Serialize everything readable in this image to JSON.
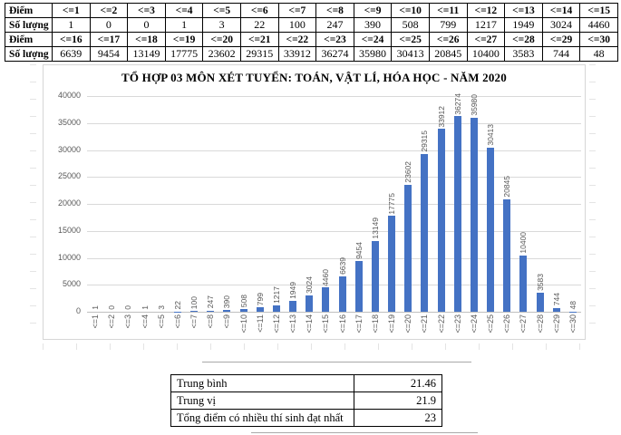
{
  "score_table": {
    "rows": [
      {
        "label": "Điểm",
        "header": true,
        "cells": [
          "<=1",
          "<=2",
          "<=3",
          "<=4",
          "<=5",
          "<=6",
          "<=7",
          "<=8",
          "<=9",
          "<=10",
          "<=11",
          "<=12",
          "<=13",
          "<=14",
          "<=15"
        ]
      },
      {
        "label": "Số lượng",
        "header": false,
        "cells": [
          "1",
          "0",
          "0",
          "1",
          "3",
          "22",
          "100",
          "247",
          "390",
          "508",
          "799",
          "1217",
          "1949",
          "3024",
          "4460"
        ]
      },
      {
        "label": "Điểm",
        "header": true,
        "cells": [
          "<=16",
          "<=17",
          "<=18",
          "<=19",
          "<=20",
          "<=21",
          "<=22",
          "<=23",
          "<=24",
          "<=25",
          "<=26",
          "<=27",
          "<=28",
          "<=29",
          "<=30"
        ]
      },
      {
        "label": "Số lượng",
        "header": false,
        "cells": [
          "6639",
          "9454",
          "13149",
          "17775",
          "23602",
          "29315",
          "33912",
          "36274",
          "35980",
          "30413",
          "20845",
          "10400",
          "3583",
          "744",
          "48"
        ]
      }
    ]
  },
  "chart_data": {
    "type": "bar",
    "title": "TỔ HỢP 03 MÔN XÉT TUYỂN: TOÁN, VẬT LÍ, HÓA HỌC - NĂM 2020",
    "categories": [
      "<=1",
      "<=2",
      "<=3",
      "<=4",
      "<=5",
      "<=6",
      "<=7",
      "<=8",
      "<=9",
      "<=10",
      "<=11",
      "<=12",
      "<=13",
      "<=14",
      "<=15",
      "<=16",
      "<=17",
      "<=18",
      "<=19",
      "<=20",
      "<=21",
      "<=22",
      "<=23",
      "<=24",
      "<=25",
      "<=26",
      "<=27",
      "<=28",
      "<=29",
      "<=30"
    ],
    "values": [
      1,
      0,
      0,
      1,
      3,
      22,
      100,
      247,
      390,
      508,
      799,
      1217,
      1949,
      3024,
      4460,
      6639,
      9454,
      13149,
      17775,
      23602,
      29315,
      33912,
      36274,
      35980,
      30413,
      20845,
      10400,
      3583,
      744,
      48
    ],
    "xlabel": "",
    "ylabel": "",
    "ylim": [
      0,
      40000
    ],
    "ytick_step": 5000,
    "yticks": [
      0,
      5000,
      10000,
      15000,
      20000,
      25000,
      30000,
      35000,
      40000
    ],
    "grid": true,
    "legend_position": "none",
    "data_labels": true,
    "label_rotation_deg": 90,
    "bar_color": "#4472C4",
    "gridline_color": "#D9D9D9"
  },
  "stats_table": {
    "rows": [
      {
        "label": "Trung bình",
        "value": "21.46"
      },
      {
        "label": "Trung vị",
        "value": "21.9"
      },
      {
        "label": "Tổng điểm có nhiều thí sinh đạt nhất",
        "value": "23"
      }
    ]
  }
}
